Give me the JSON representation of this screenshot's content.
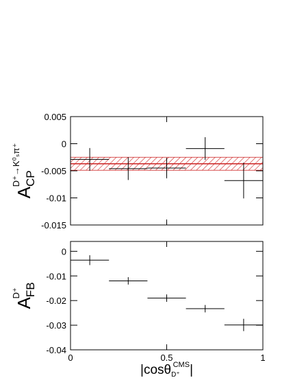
{
  "chart_data": [
    {
      "type": "errorbar",
      "ylabel": {
        "main": "A",
        "sub": "CP",
        "sup": "D⁺→K⁰ₛπ⁺"
      },
      "x": [
        0.1,
        0.3,
        0.5,
        0.7,
        0.9
      ],
      "xerr": [
        0.1,
        0.1,
        0.1,
        0.1,
        0.1
      ],
      "values": [
        -0.0029,
        -0.0046,
        -0.0045,
        -0.0009,
        -0.0068
      ],
      "errors": [
        0.0021,
        0.0021,
        0.0019,
        0.0021,
        0.0033
      ],
      "color": "#000000",
      "band": {
        "center": -0.0037,
        "error": 0.0012,
        "color": "#cc2222"
      },
      "xlim": [
        0,
        1
      ],
      "xticks": [
        0,
        0.5,
        1
      ],
      "ylim": [
        -0.015,
        0.005
      ],
      "yticks": [
        -0.015,
        -0.01,
        -0.005,
        0,
        0.005
      ]
    },
    {
      "type": "errorbar",
      "ylabel": {
        "main": "A",
        "sub": "FB",
        "sup": "D⁺"
      },
      "xlabel": {
        "main": "|cosθ",
        "sup": "CMS",
        "sub": "D⁺",
        "end": "|"
      },
      "x": [
        0.1,
        0.3,
        0.5,
        0.7,
        0.9
      ],
      "xerr": [
        0.1,
        0.1,
        0.1,
        0.1,
        0.1
      ],
      "values": [
        -0.0036,
        -0.012,
        -0.019,
        -0.0233,
        -0.0299
      ],
      "errors": [
        0.002,
        0.0015,
        0.0015,
        0.0015,
        0.0025
      ],
      "color": "#000000",
      "xlim": [
        0,
        1
      ],
      "xticks": [
        0,
        0.5,
        1
      ],
      "ylim": [
        -0.04,
        0.004
      ],
      "yticks": [
        -0.04,
        -0.03,
        -0.02,
        -0.01,
        0
      ]
    }
  ]
}
